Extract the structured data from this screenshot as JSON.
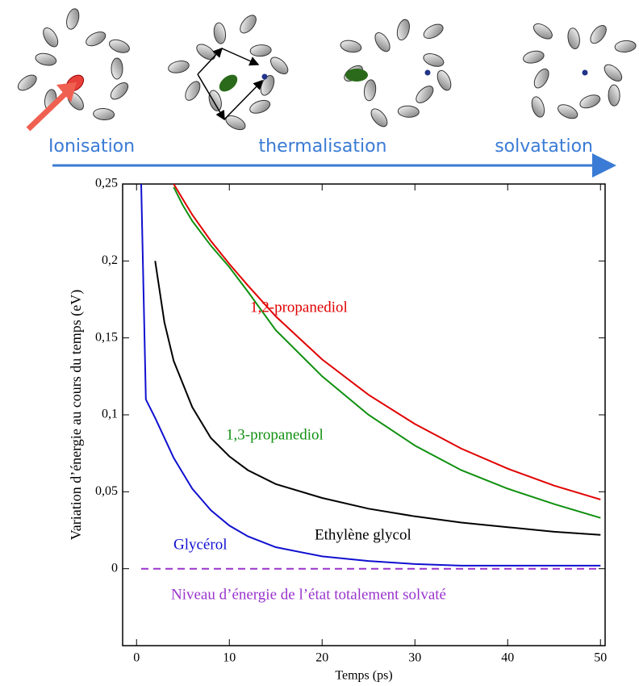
{
  "diagram": {
    "stages": [
      "Ionisation",
      "thermalisation",
      "solvatation"
    ]
  },
  "chart_data": {
    "type": "line",
    "xlabel": "Temps (ps)",
    "ylabel": "Variation d’énergie au cours du temps (eV)",
    "x": [
      0.5,
      1,
      2,
      3,
      4,
      5,
      6,
      8,
      10,
      12,
      15,
      20,
      25,
      30,
      35,
      40,
      45,
      50
    ],
    "series": [
      {
        "name": "1,2-propanediol",
        "color": "#e00000",
        "values": [
          null,
          null,
          null,
          null,
          0.25,
          0.24,
          0.23,
          0.213,
          0.198,
          0.184,
          0.164,
          0.136,
          0.113,
          0.094,
          0.078,
          0.065,
          0.054,
          0.045
        ]
      },
      {
        "name": "1,3-propanediol",
        "color": "#109010",
        "values": [
          null,
          null,
          null,
          null,
          0.248,
          0.236,
          0.226,
          0.21,
          0.196,
          0.18,
          0.155,
          0.125,
          0.1,
          0.08,
          0.064,
          0.052,
          0.042,
          0.033
        ]
      },
      {
        "name": "Ethylène glycol",
        "color": "#000000",
        "values": [
          null,
          null,
          0.2,
          0.16,
          0.135,
          0.12,
          0.105,
          0.085,
          0.073,
          0.064,
          0.055,
          0.046,
          0.039,
          0.034,
          0.03,
          0.027,
          0.024,
          0.022
        ]
      },
      {
        "name": "Glycérol",
        "color": "#1010d0",
        "values": [
          0.25,
          0.11,
          0.098,
          0.085,
          0.072,
          0.062,
          0.052,
          0.038,
          0.028,
          0.021,
          0.014,
          0.008,
          0.005,
          0.003,
          0.002,
          0.002,
          0.002,
          0.002
        ]
      },
      {
        "name": "Niveau d’énergie de l’état totalement solvaté",
        "color": "#9933cc",
        "dashed": true,
        "values": [
          0,
          0,
          0,
          0,
          0,
          0,
          0,
          0,
          0,
          0,
          0,
          0,
          0,
          0,
          0,
          0,
          0,
          0
        ]
      }
    ],
    "xlim": [
      -1.5,
      50.5
    ],
    "ylim": [
      -0.05,
      0.25
    ],
    "xticks": [
      0,
      10,
      20,
      30,
      40,
      50
    ],
    "yticks": [
      0,
      {
        "value": 0.05,
        "label": "0,05"
      },
      {
        "value": 0.1,
        "label": "0,1"
      },
      {
        "value": 0.15,
        "label": "0,15"
      },
      {
        "value": 0.2,
        "label": "0,2"
      },
      {
        "value": 0.25,
        "label": "0,25"
      }
    ]
  }
}
